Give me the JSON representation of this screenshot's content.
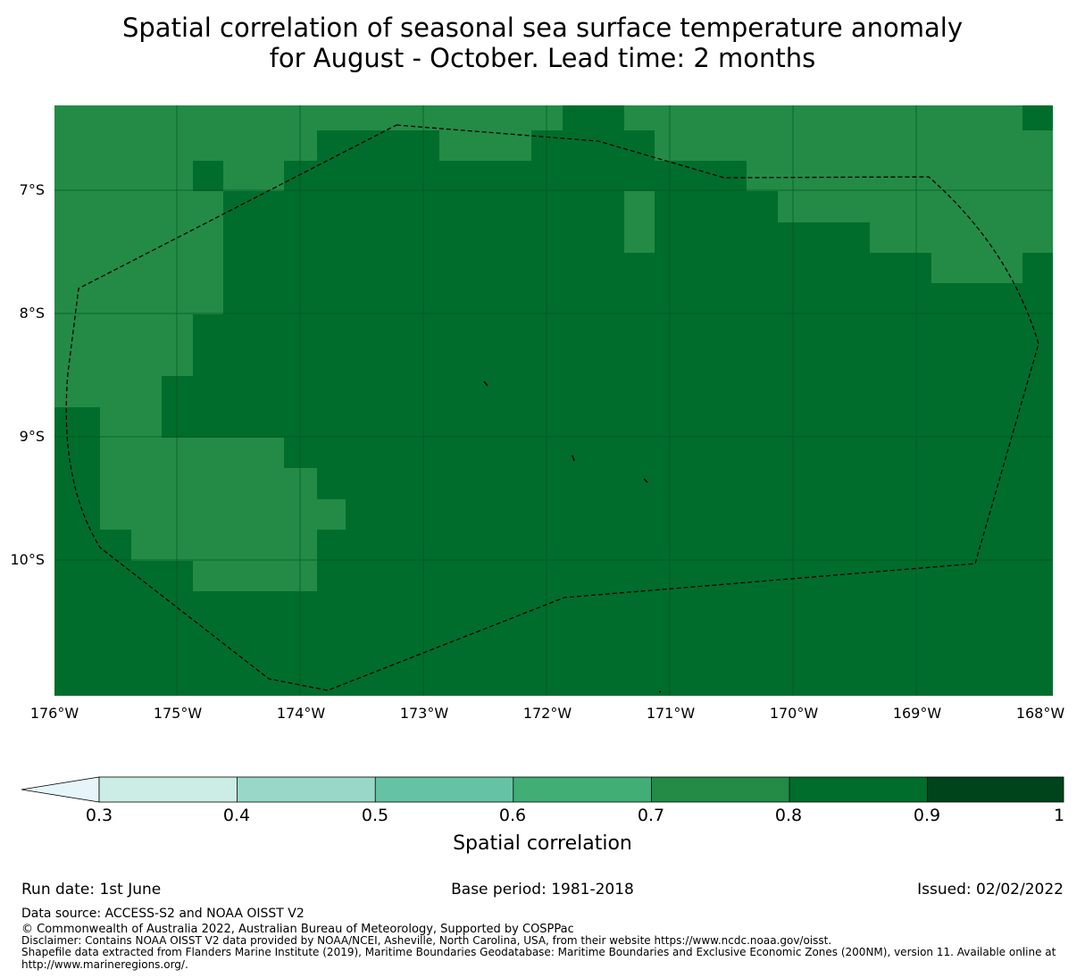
{
  "title_line1": "Spatial correlation of seasonal sea surface temperature anomaly",
  "title_line2": "for August - October. Lead time: 2 months",
  "map": {
    "lon_range": [
      -176,
      -168
    ],
    "lat_range": [
      -11.2,
      -6.3
    ],
    "lat_ticks": [
      "7°S",
      "8°S",
      "9°S",
      "10°S"
    ],
    "lon_ticks": [
      "176°W",
      "175°W",
      "174°W",
      "173°W",
      "172°W",
      "171°W",
      "170°W",
      "169°W",
      "168°W"
    ],
    "colors": {
      "class_0_7_0_8": "#238b45",
      "class_0_8_0_9": "#006d2c"
    }
  },
  "colorbar": {
    "label": "Spatial correlation",
    "ticks": [
      "0.3",
      "0.4",
      "0.5",
      "0.6",
      "0.7",
      "0.8",
      "0.9",
      "1"
    ],
    "bins": [
      {
        "from": 0.3,
        "to": 0.4,
        "color": "#ccece6"
      },
      {
        "from": 0.4,
        "to": 0.5,
        "color": "#99d8c9"
      },
      {
        "from": 0.5,
        "to": 0.6,
        "color": "#66c2a4"
      },
      {
        "from": 0.6,
        "to": 0.7,
        "color": "#41ae76"
      },
      {
        "from": 0.7,
        "to": 0.8,
        "color": "#238b45"
      },
      {
        "from": 0.8,
        "to": 0.9,
        "color": "#006d2c"
      },
      {
        "from": 0.9,
        "to": 1.0,
        "color": "#00441b"
      }
    ],
    "extend_color": "#e5f5f9"
  },
  "footer": {
    "run_date": "Run date: 1st June",
    "base_period": "Base period: 1981-2018",
    "issued": "Issued: 02/02/2022",
    "data_source": "Data source: ACCESS-S2 and NOAA OISST V2",
    "copyright": "© Commonwealth of Australia 2022, Australian Bureau of Meteorology, Supported by COSPPac",
    "disclaimer": "Disclaimer: Contains NOAA OISST V2 data provided by NOAA/NCEI, Asheville, North Carolina, USA, from their website https://www.ncdc.noaa.gov/oisst.",
    "shapefile_line1": "Shapefile data extracted from Flanders Marine Institute (2019), Maritime Boundaries Geodatabase: Maritime Boundaries and Exclusive Economic Zones (200NM), version 11. Available online at",
    "shapefile_line2": "http://www.marineregions.org/."
  }
}
